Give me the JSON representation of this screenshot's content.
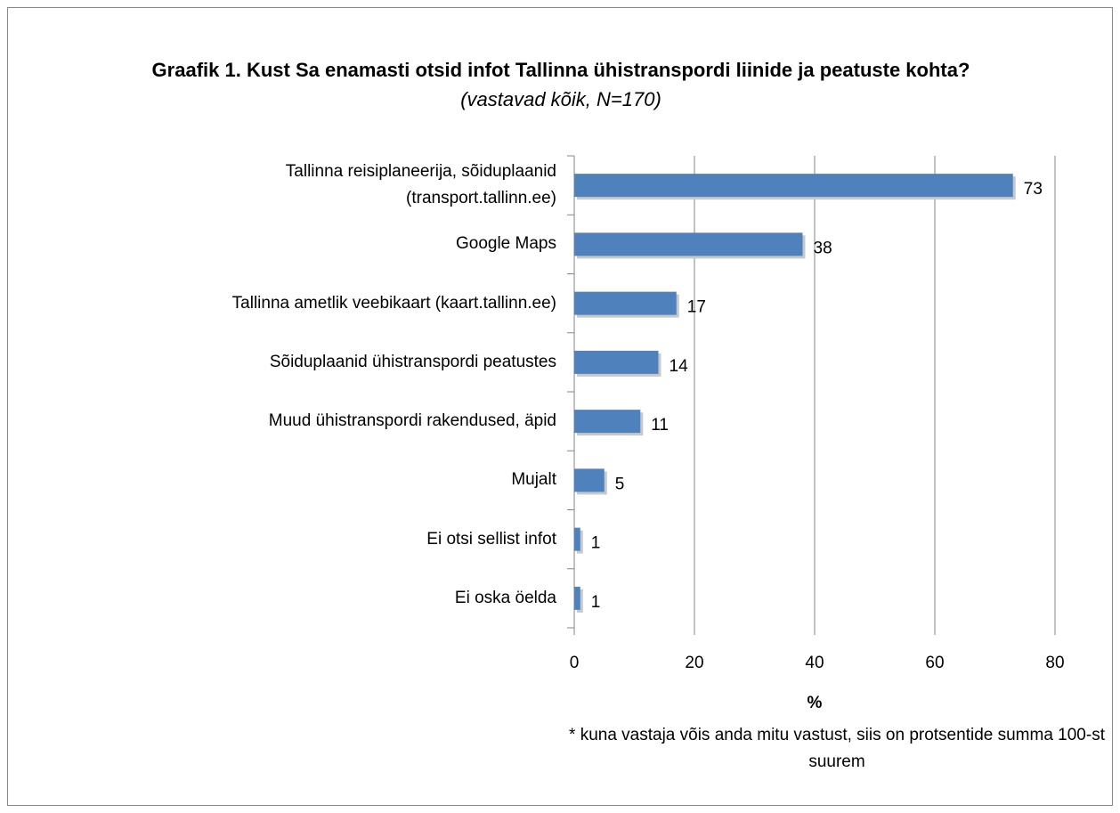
{
  "chart_data": {
    "type": "bar",
    "orientation": "horizontal",
    "title": "Graafik 1. Kust Sa enamasti otsid infot Tallinna ühistranspordi liinide ja peatuste kohta?",
    "subtitle": "(vastavad kõik, N=170)",
    "categories": [
      "Tallinna reisiplaneerija, sõiduplaanid (transport.tallinn.ee)",
      "Google Maps",
      "Tallinna ametlik veebikaart (kaart.tallinn.ee)",
      "Sõiduplaanid ühistranspordi peatustes",
      "Muud ühistranspordi rakendused, äpid",
      "Mujalt",
      "Ei otsi sellist infot",
      "Ei oska öelda"
    ],
    "values": [
      73,
      38,
      17,
      14,
      11,
      5,
      1,
      1
    ],
    "color": "#4f81bd",
    "xlim": [
      0,
      80
    ],
    "xticks": [
      0,
      20,
      40,
      60,
      80
    ],
    "grid": true,
    "xlabel": "%",
    "annotation": "* kuna vastaja võis anda mitu vastust, siis on protsentide summa 100-st suurem"
  }
}
